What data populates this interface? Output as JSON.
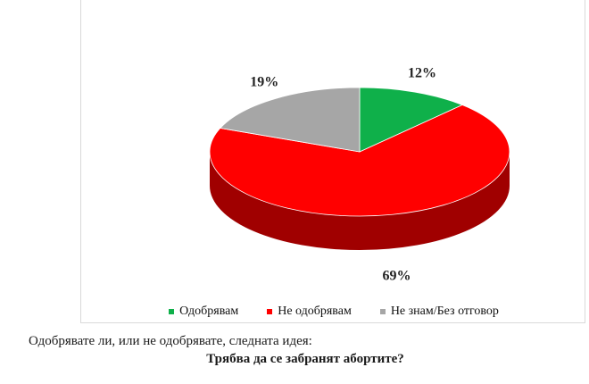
{
  "chart_data": {
    "type": "pie",
    "categories": [
      "Одобрявам",
      "Не одобрявам",
      "Не знам/Без отговор"
    ],
    "values": [
      12,
      69,
      19
    ],
    "value_labels": [
      "12%",
      "69%",
      "19%"
    ],
    "colors": [
      "#0fb04a",
      "#ff0000",
      "#a6a6a6"
    ],
    "side_colors": [
      "#0a7a33",
      "#a00000",
      "#707070"
    ],
    "style": "3d",
    "legend_position": "bottom"
  },
  "caption": {
    "question": "Одобрявате ли, или не одобрявате, следната идея:",
    "idea": "Трябва да се забранят абортите?"
  }
}
